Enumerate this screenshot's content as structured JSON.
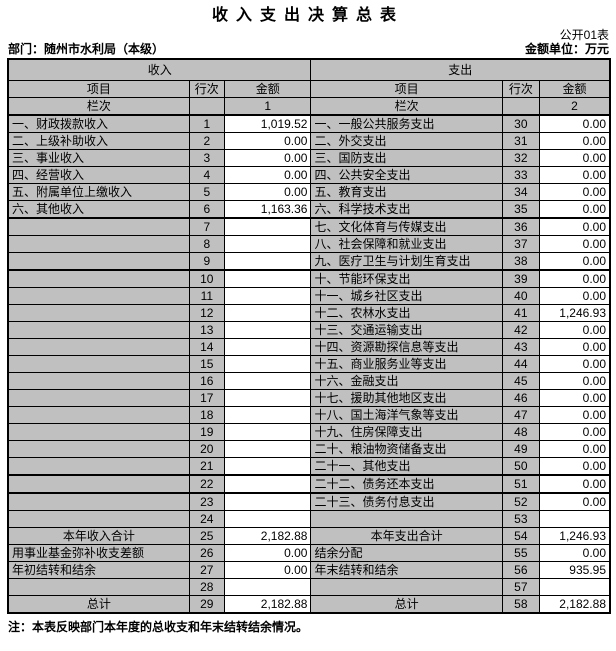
{
  "title": "收入支出决算总表",
  "meta": {
    "form_label": "公开01表",
    "department": "部门：随州市水利局（本级）",
    "unit": "金额单位：万元"
  },
  "colors": {
    "header_bg": "#c0c0c0",
    "cell_bg": "#ffffff",
    "border": "#000000"
  },
  "table": {
    "income_header": "收入",
    "expense_header": "支出",
    "col_headers": {
      "item": "项目",
      "line_no": "行次",
      "amount": "金额"
    },
    "column_index_label": "栏次",
    "income_col_index": "1",
    "expense_col_index": "2",
    "rows": [
      {
        "income": {
          "item": "一、财政拨款收入",
          "line": "1",
          "amount": "1,019.52"
        },
        "expense": {
          "item": "一、一般公共服务支出",
          "line": "30",
          "amount": "0.00"
        }
      },
      {
        "income": {
          "item": "二、上级补助收入",
          "line": "2",
          "amount": "0.00"
        },
        "expense": {
          "item": "二、外交支出",
          "line": "31",
          "amount": "0.00"
        }
      },
      {
        "income": {
          "item": "三、事业收入",
          "line": "3",
          "amount": "0.00"
        },
        "expense": {
          "item": "三、国防支出",
          "line": "32",
          "amount": "0.00"
        }
      },
      {
        "income": {
          "item": "四、经营收入",
          "line": "4",
          "amount": "0.00"
        },
        "expense": {
          "item": "四、公共安全支出",
          "line": "33",
          "amount": "0.00"
        }
      },
      {
        "income": {
          "item": "五、附属单位上缴收入",
          "line": "5",
          "amount": "0.00"
        },
        "expense": {
          "item": "五、教育支出",
          "line": "34",
          "amount": "0.00"
        }
      },
      {
        "income": {
          "item": "六、其他收入",
          "line": "6",
          "amount": "1,163.36"
        },
        "expense": {
          "item": "六、科学技术支出",
          "line": "35",
          "amount": "0.00"
        }
      },
      {
        "thick_top": true,
        "income": {
          "item": "",
          "line": "7",
          "amount": ""
        },
        "expense": {
          "item": "七、文化体育与传媒支出",
          "line": "36",
          "amount": "0.00"
        }
      },
      {
        "income": {
          "item": "",
          "line": "8",
          "amount": ""
        },
        "expense": {
          "item": "八、社会保障和就业支出",
          "line": "37",
          "amount": "0.00"
        }
      },
      {
        "income": {
          "item": "",
          "line": "9",
          "amount": ""
        },
        "expense": {
          "item": "九、医疗卫生与计划生育支出",
          "line": "38",
          "amount": "0.00"
        }
      },
      {
        "thick_top": true,
        "income": {
          "item": "",
          "line": "10",
          "amount": ""
        },
        "expense": {
          "item": "十、节能环保支出",
          "line": "39",
          "amount": "0.00"
        }
      },
      {
        "income": {
          "item": "",
          "line": "11",
          "amount": ""
        },
        "expense": {
          "item": "十一、城乡社区支出",
          "line": "40",
          "amount": "0.00"
        }
      },
      {
        "income": {
          "item": "",
          "line": "12",
          "amount": ""
        },
        "expense": {
          "item": "十二、农林水支出",
          "line": "41",
          "amount": "1,246.93"
        }
      },
      {
        "income": {
          "item": "",
          "line": "13",
          "amount": ""
        },
        "expense": {
          "item": "十三、交通运输支出",
          "line": "42",
          "amount": "0.00"
        }
      },
      {
        "income": {
          "item": "",
          "line": "14",
          "amount": ""
        },
        "expense": {
          "item": "十四、资源勘探信息等支出",
          "line": "43",
          "amount": "0.00"
        }
      },
      {
        "income": {
          "item": "",
          "line": "15",
          "amount": ""
        },
        "expense": {
          "item": "十五、商业服务业等支出",
          "line": "44",
          "amount": "0.00"
        }
      },
      {
        "income": {
          "item": "",
          "line": "16",
          "amount": ""
        },
        "expense": {
          "item": "十六、金融支出",
          "line": "45",
          "amount": "0.00"
        }
      },
      {
        "income": {
          "item": "",
          "line": "17",
          "amount": ""
        },
        "expense": {
          "item": "十七、援助其他地区支出",
          "line": "46",
          "amount": "0.00"
        }
      },
      {
        "income": {
          "item": "",
          "line": "18",
          "amount": ""
        },
        "expense": {
          "item": "十八、国土海洋气象等支出",
          "line": "47",
          "amount": "0.00"
        }
      },
      {
        "income": {
          "item": "",
          "line": "19",
          "amount": ""
        },
        "expense": {
          "item": "十九、住房保障支出",
          "line": "48",
          "amount": "0.00"
        }
      },
      {
        "income": {
          "item": "",
          "line": "20",
          "amount": ""
        },
        "expense": {
          "item": "二十、粮油物资储备支出",
          "line": "49",
          "amount": "0.00"
        }
      },
      {
        "income": {
          "item": "",
          "line": "21",
          "amount": ""
        },
        "expense": {
          "item": "二十一、其他支出",
          "line": "50",
          "amount": "0.00"
        }
      },
      {
        "thick_top": true,
        "income": {
          "item": "",
          "line": "22",
          "amount": ""
        },
        "expense": {
          "item": "二十二、债务还本支出",
          "line": "51",
          "amount": "0.00"
        }
      },
      {
        "thick_top": true,
        "income": {
          "item": "",
          "line": "23",
          "amount": ""
        },
        "expense": {
          "item": "二十三、债务付息支出",
          "line": "52",
          "amount": "0.00"
        }
      },
      {
        "income": {
          "item": "",
          "line": "24",
          "amount": ""
        },
        "expense": {
          "item": "",
          "line": "53",
          "amount": ""
        }
      },
      {
        "center": true,
        "income": {
          "item": "本年收入合计",
          "line": "25",
          "amount": "2,182.88"
        },
        "expense": {
          "item": "本年支出合计",
          "line": "54",
          "amount": "1,246.93"
        }
      },
      {
        "income": {
          "item": "用事业基金弥补收支差额",
          "line": "26",
          "amount": "0.00"
        },
        "expense": {
          "item": "结余分配",
          "line": "55",
          "amount": "0.00"
        }
      },
      {
        "income": {
          "item": "年初结转和结余",
          "line": "27",
          "amount": "0.00"
        },
        "expense": {
          "item": "年末结转和结余",
          "line": "56",
          "amount": "935.95"
        }
      },
      {
        "income": {
          "item": "",
          "line": "28",
          "amount": ""
        },
        "expense": {
          "item": "",
          "line": "57",
          "amount": ""
        }
      },
      {
        "center": true,
        "income": {
          "item": "总计",
          "line": "29",
          "amount": "2,182.88"
        },
        "expense": {
          "item": "总计",
          "line": "58",
          "amount": "2,182.88"
        }
      }
    ]
  },
  "note": "注：本表反映部门本年度的总收支和年末结转结余情况。"
}
